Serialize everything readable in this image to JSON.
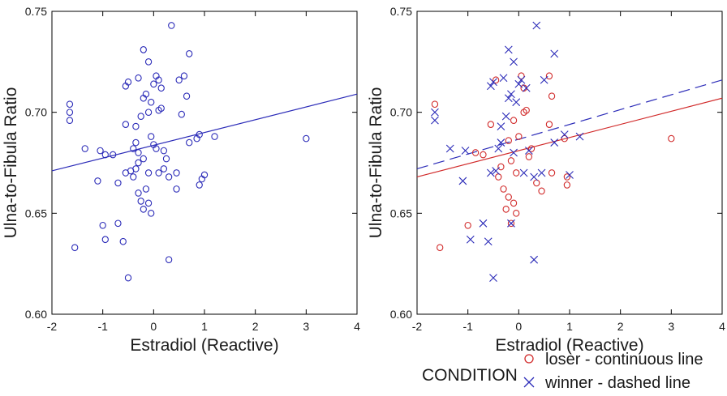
{
  "colors": {
    "blue": "#2b2bb8",
    "red": "#d12a2a",
    "axis": "#000000"
  },
  "legend": {
    "title": "CONDITION",
    "items": [
      {
        "label": "loser - continuous line",
        "marker": "circle",
        "color": "#d12a2a"
      },
      {
        "label": "winner - dashed line",
        "marker": "x",
        "color": "#2b2bb8"
      }
    ]
  },
  "chart_data": [
    {
      "type": "scatter",
      "xlabel": "Estradiol (Reactive)",
      "ylabel": "Ulna-to-Fibula Ratio",
      "xlim": [
        -2,
        4
      ],
      "ylim": [
        0.6,
        0.75
      ],
      "x_ticks": [
        "-2",
        "-1",
        "0",
        "1",
        "2",
        "3",
        "4"
      ],
      "y_ticks": [
        "0.60",
        "0.65",
        "0.70",
        "0.75"
      ],
      "series": [
        {
          "marker": "circle",
          "color": "#2b2bb8",
          "points": [
            [
              -1.65,
              0.704
            ],
            [
              -1.65,
              0.7
            ],
            [
              -1.65,
              0.696
            ],
            [
              -1.55,
              0.633
            ],
            [
              -1.35,
              0.682
            ],
            [
              -1.05,
              0.681
            ],
            [
              -0.95,
              0.679
            ],
            [
              -0.8,
              0.679
            ],
            [
              -1.0,
              0.644
            ],
            [
              -0.95,
              0.637
            ],
            [
              -0.7,
              0.645
            ],
            [
              -0.6,
              0.636
            ],
            [
              -0.5,
              0.618
            ],
            [
              -0.55,
              0.713
            ],
            [
              -0.5,
              0.715
            ],
            [
              -0.55,
              0.694
            ],
            [
              -0.55,
              0.67
            ],
            [
              -0.45,
              0.671
            ],
            [
              -0.4,
              0.668
            ],
            [
              -0.4,
              0.682
            ],
            [
              -0.3,
              0.717
            ],
            [
              -0.35,
              0.693
            ],
            [
              -0.35,
              0.685
            ],
            [
              -0.3,
              0.675
            ],
            [
              -0.35,
              0.672
            ],
            [
              -0.3,
              0.66
            ],
            [
              -0.25,
              0.656
            ],
            [
              -0.2,
              0.652
            ],
            [
              -0.3,
              0.68
            ],
            [
              -0.2,
              0.677
            ],
            [
              -0.25,
              0.698
            ],
            [
              -0.2,
              0.707
            ],
            [
              -0.15,
              0.709
            ],
            [
              -0.2,
              0.731
            ],
            [
              -0.1,
              0.725
            ],
            [
              -0.1,
              0.7
            ],
            [
              -0.05,
              0.688
            ],
            [
              -0.05,
              0.705
            ],
            [
              0.0,
              0.714
            ],
            [
              0.05,
              0.718
            ],
            [
              0.1,
              0.716
            ],
            [
              0.15,
              0.712
            ],
            [
              0.1,
              0.701
            ],
            [
              0.15,
              0.702
            ],
            [
              -0.1,
              0.655
            ],
            [
              -0.05,
              0.65
            ],
            [
              -0.15,
              0.662
            ],
            [
              -0.1,
              0.67
            ],
            [
              0.0,
              0.684
            ],
            [
              0.05,
              0.682
            ],
            [
              0.1,
              0.67
            ],
            [
              0.2,
              0.681
            ],
            [
              0.25,
              0.677
            ],
            [
              0.3,
              0.668
            ],
            [
              0.45,
              0.67
            ],
            [
              0.35,
              0.743
            ],
            [
              0.5,
              0.716
            ],
            [
              0.6,
              0.718
            ],
            [
              0.65,
              0.708
            ],
            [
              0.7,
              0.729
            ],
            [
              0.55,
              0.699
            ],
            [
              0.7,
              0.685
            ],
            [
              0.3,
              0.627
            ],
            [
              0.85,
              0.687
            ],
            [
              0.9,
              0.689
            ],
            [
              0.95,
              0.667
            ],
            [
              1.0,
              0.669
            ],
            [
              0.9,
              0.664
            ],
            [
              1.2,
              0.688
            ],
            [
              0.45,
              0.662
            ],
            [
              0.2,
              0.672
            ],
            [
              -0.7,
              0.665
            ],
            [
              3.0,
              0.687
            ],
            [
              -1.1,
              0.666
            ]
          ]
        }
      ],
      "fit_lines": [
        {
          "color": "#2b2bb8",
          "dash": false,
          "x": [
            -2,
            4
          ],
          "y": [
            0.671,
            0.709
          ]
        }
      ]
    },
    {
      "type": "scatter",
      "xlabel": "Estradiol (Reactive)",
      "ylabel": "Ulna-to-Fibula Ratio",
      "xlim": [
        -2,
        4
      ],
      "ylim": [
        0.6,
        0.75
      ],
      "x_ticks": [
        "-2",
        "-1",
        "0",
        "1",
        "2",
        "3",
        "4"
      ],
      "y_ticks": [
        "0.60",
        "0.65",
        "0.70",
        "0.75"
      ],
      "series": [
        {
          "name": "loser - continuous line",
          "marker": "circle",
          "color": "#d12a2a",
          "points": [
            [
              -1.65,
              0.704
            ],
            [
              -1.55,
              0.633
            ],
            [
              -1.0,
              0.644
            ],
            [
              -0.85,
              0.68
            ],
            [
              -0.55,
              0.694
            ],
            [
              -0.45,
              0.716
            ],
            [
              -0.4,
              0.668
            ],
            [
              -0.35,
              0.673
            ],
            [
              -0.3,
              0.662
            ],
            [
              -0.25,
              0.652
            ],
            [
              -0.2,
              0.658
            ],
            [
              -0.15,
              0.676
            ],
            [
              -0.2,
              0.686
            ],
            [
              -0.1,
              0.696
            ],
            [
              -0.1,
              0.655
            ],
            [
              -0.05,
              0.65
            ],
            [
              -0.05,
              0.67
            ],
            [
              0.0,
              0.688
            ],
            [
              0.05,
              0.718
            ],
            [
              0.1,
              0.712
            ],
            [
              0.1,
              0.7
            ],
            [
              0.15,
              0.701
            ],
            [
              0.2,
              0.678
            ],
            [
              0.25,
              0.682
            ],
            [
              0.45,
              0.661
            ],
            [
              0.6,
              0.718
            ],
            [
              0.65,
              0.708
            ],
            [
              0.65,
              0.67
            ],
            [
              0.6,
              0.694
            ],
            [
              0.9,
              0.687
            ],
            [
              0.95,
              0.668
            ],
            [
              0.95,
              0.664
            ],
            [
              3.0,
              0.687
            ],
            [
              -0.7,
              0.679
            ],
            [
              -0.15,
              0.645
            ],
            [
              0.35,
              0.665
            ]
          ]
        },
        {
          "name": "winner - dashed line",
          "marker": "x",
          "color": "#2b2bb8",
          "points": [
            [
              -1.65,
              0.7
            ],
            [
              -1.65,
              0.696
            ],
            [
              -1.35,
              0.682
            ],
            [
              -1.05,
              0.681
            ],
            [
              -0.95,
              0.637
            ],
            [
              -1.1,
              0.666
            ],
            [
              -0.7,
              0.645
            ],
            [
              -0.6,
              0.636
            ],
            [
              -0.5,
              0.618
            ],
            [
              -0.55,
              0.713
            ],
            [
              -0.5,
              0.715
            ],
            [
              -0.55,
              0.67
            ],
            [
              -0.45,
              0.671
            ],
            [
              -0.4,
              0.682
            ],
            [
              -0.3,
              0.717
            ],
            [
              -0.35,
              0.693
            ],
            [
              -0.35,
              0.685
            ],
            [
              -0.25,
              0.698
            ],
            [
              -0.2,
              0.707
            ],
            [
              -0.15,
              0.709
            ],
            [
              -0.2,
              0.731
            ],
            [
              -0.1,
              0.725
            ],
            [
              -0.05,
              0.705
            ],
            [
              0.0,
              0.714
            ],
            [
              0.05,
              0.716
            ],
            [
              0.1,
              0.67
            ],
            [
              0.2,
              0.681
            ],
            [
              0.3,
              0.668
            ],
            [
              0.35,
              0.743
            ],
            [
              0.5,
              0.716
            ],
            [
              0.7,
              0.729
            ],
            [
              0.7,
              0.685
            ],
            [
              0.3,
              0.627
            ],
            [
              0.9,
              0.689
            ],
            [
              1.0,
              0.669
            ],
            [
              1.2,
              0.688
            ],
            [
              0.45,
              0.67
            ],
            [
              -0.1,
              0.68
            ],
            [
              -0.15,
              0.645
            ],
            [
              0.15,
              0.712
            ]
          ]
        }
      ],
      "fit_lines": [
        {
          "color": "#d12a2a",
          "dash": false,
          "x": [
            -2,
            4
          ],
          "y": [
            0.668,
            0.707
          ]
        },
        {
          "color": "#2b2bb8",
          "dash": true,
          "x": [
            -2,
            4
          ],
          "y": [
            0.672,
            0.716
          ]
        }
      ]
    }
  ]
}
